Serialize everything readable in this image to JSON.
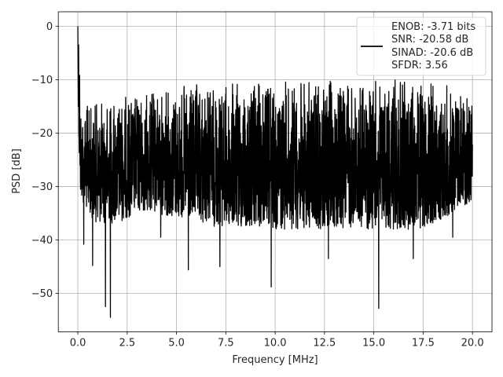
{
  "chart_data": {
    "type": "line",
    "title": "",
    "xlabel": "Frequency [MHz]",
    "ylabel": "PSD [dB]",
    "xlim": [
      -0.99,
      20.99
    ],
    "ylim": [
      -57.2,
      2.7
    ],
    "xticks": [
      0.0,
      2.5,
      5.0,
      7.5,
      10.0,
      12.5,
      15.0,
      17.5,
      20.0
    ],
    "xtick_labels": [
      "0.0",
      "2.5",
      "5.0",
      "7.5",
      "10.0",
      "12.5",
      "15.0",
      "17.5",
      "20.0"
    ],
    "yticks": [
      0,
      -10,
      -20,
      -30,
      -40,
      -50
    ],
    "ytick_labels": [
      "0",
      "−10",
      "−20",
      "−30",
      "−40",
      "−50"
    ],
    "grid": true,
    "legend": {
      "placement": "upper-right",
      "lines": [
        "ENOB: -3.71 bits",
        "SNR: -20.58 dB",
        "SINAD: -20.6 dB",
        "SFDR: 3.56"
      ]
    },
    "series": [
      {
        "color": "#000000",
        "envelope": {
          "x": [
            0.0,
            0.1,
            0.5,
            1.0,
            2.0,
            3.0,
            4.0,
            5.0,
            7.5,
            10.0,
            12.5,
            15.0,
            17.5,
            20.0
          ],
          "upper": [
            0.0,
            -13,
            -14.5,
            -14,
            -13,
            -12.5,
            -12,
            -11,
            -10.5,
            -10.2,
            -10.0,
            -10.0,
            -10.0,
            -11.5
          ],
          "lower": [
            -10,
            -32,
            -35,
            -37,
            -37,
            -35,
            -35,
            -36,
            -38,
            -38,
            -38,
            -38,
            -38,
            -33
          ]
        },
        "spikes": [
          {
            "x": 0.0,
            "y": 0.0
          },
          {
            "x": 0.04,
            "y": -3.5
          },
          {
            "x": 0.09,
            "y": -9.2
          },
          {
            "x": 0.3,
            "y": -40.8
          },
          {
            "x": 0.75,
            "y": -44.8
          },
          {
            "x": 1.4,
            "y": -52.5
          },
          {
            "x": 1.65,
            "y": -54.5
          },
          {
            "x": 4.2,
            "y": -39.5
          },
          {
            "x": 5.6,
            "y": -45.6
          },
          {
            "x": 7.2,
            "y": -45.0
          },
          {
            "x": 9.8,
            "y": -48.8
          },
          {
            "x": 12.7,
            "y": -43.5
          },
          {
            "x": 15.25,
            "y": -52.8
          },
          {
            "x": 17.0,
            "y": -43.5
          },
          {
            "x": 19.0,
            "y": -39.5
          }
        ]
      }
    ]
  }
}
